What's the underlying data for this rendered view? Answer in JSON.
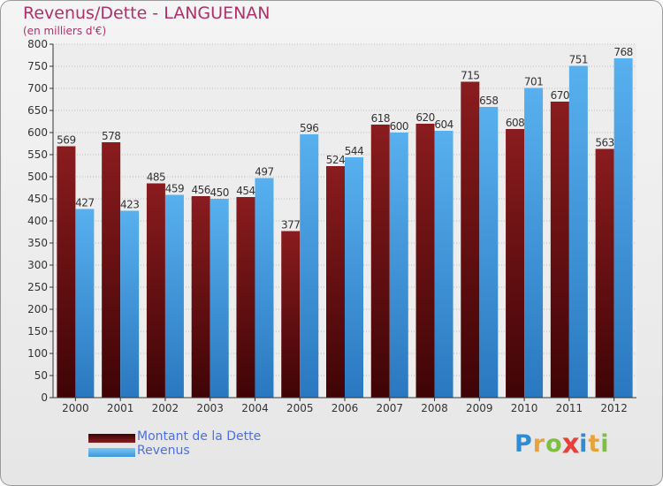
{
  "chart_data": {
    "type": "bar",
    "title": "Revenus/Dette - LANGUENAN",
    "subtitle": "(en milliers d'€)",
    "categories": [
      "2000",
      "2001",
      "2002",
      "2003",
      "2004",
      "2005",
      "2006",
      "2007",
      "2008",
      "2009",
      "2010",
      "2011",
      "2012"
    ],
    "series": [
      {
        "name": "Montant de la Dette",
        "color": "#7a1416",
        "values": [
          569,
          578,
          485,
          456,
          454,
          377,
          524,
          618,
          620,
          715,
          608,
          670,
          563
        ]
      },
      {
        "name": "Revenus",
        "color": "#4aa6e6",
        "values": [
          427,
          423,
          459,
          450,
          497,
          596,
          544,
          600,
          604,
          658,
          701,
          751,
          768
        ]
      }
    ],
    "ylim": [
      0,
      800
    ],
    "yticks": [
      0,
      50,
      100,
      150,
      200,
      250,
      300,
      350,
      400,
      450,
      500,
      550,
      600,
      650,
      700,
      750,
      800
    ],
    "grid": true,
    "legend_position": "bottom-left"
  },
  "logo": {
    "text": "Proxiti",
    "letters": [
      {
        "char": "P",
        "color": "#2e8bd6"
      },
      {
        "char": "r",
        "color": "#e8a23a"
      },
      {
        "char": "o",
        "color": "#7fbf3f"
      },
      {
        "char": "x",
        "color": "#e8413a"
      },
      {
        "char": "i",
        "color": "#2e8bd6"
      },
      {
        "char": "t",
        "color": "#e8a23a"
      },
      {
        "char": "i",
        "color": "#7fbf3f"
      }
    ]
  }
}
